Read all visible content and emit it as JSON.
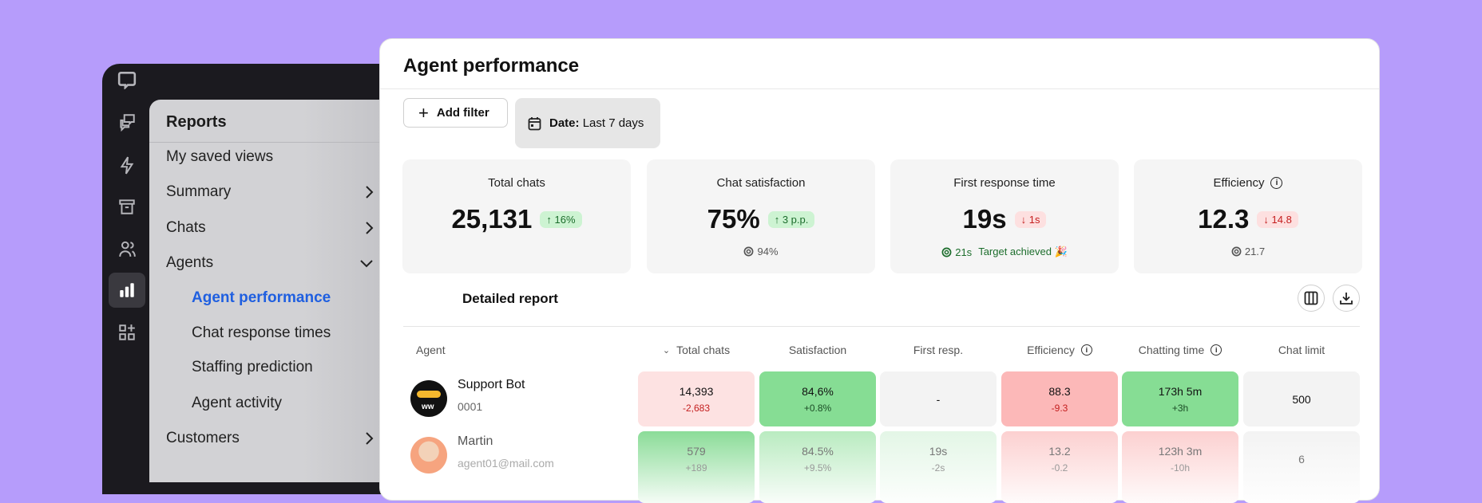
{
  "sidebar": {
    "title": "Reports",
    "items": [
      {
        "label": "My saved views",
        "chevron": ""
      },
      {
        "label": "Summary",
        "chevron": "right"
      },
      {
        "label": "Chats",
        "chevron": "right"
      },
      {
        "label": "Agents",
        "chevron": "down"
      },
      {
        "label": "Agent performance",
        "sub": true,
        "active": true
      },
      {
        "label": "Chat response times",
        "sub": true
      },
      {
        "label": "Staffing prediction",
        "sub": true
      },
      {
        "label": "Agent activity",
        "sub": true
      },
      {
        "label": "Customers",
        "chevron": "right"
      }
    ],
    "rail": [
      "chat-logo-icon",
      "chats-icon",
      "lightning-icon",
      "archive-icon",
      "people-icon",
      "reports-icon",
      "apps-add-icon"
    ]
  },
  "header": {
    "title": "Agent performance",
    "add_filter": "Add filter",
    "date_label": "Date:",
    "date_value": "Last 7 days"
  },
  "cards": [
    {
      "label": "Total chats",
      "value": "25,131",
      "delta": "16%",
      "dir": "up",
      "foot": ""
    },
    {
      "label": "Chat satisfaction",
      "value": "75%",
      "delta": "3 p.p.",
      "dir": "up",
      "foot": "94%"
    },
    {
      "label": "First response time",
      "value": "19s",
      "delta": "1s",
      "dir": "down",
      "foot": "21s",
      "foot_note": "Target achieved 🎉"
    },
    {
      "label": "Efficiency",
      "value": "12.3",
      "delta": "14.8",
      "dir": "down",
      "foot": "21.7",
      "info": true
    }
  ],
  "report": {
    "title": "Detailed report",
    "columns": [
      "Agent",
      "Total chats",
      "Satisfaction",
      "First resp.",
      "Efficiency",
      "Chatting time",
      "Chat limit"
    ],
    "rows": [
      {
        "name": "Support Bot",
        "sub": "0001",
        "cells": [
          [
            "14,393",
            "-2,683"
          ],
          [
            "84,6%",
            "+0.8%"
          ],
          [
            "-",
            ""
          ],
          [
            "88.3",
            "-9.3"
          ],
          [
            "173h 5m",
            "+3h"
          ],
          [
            "500",
            ""
          ]
        ]
      },
      {
        "name": "Martin",
        "sub": "agent01@mail.com",
        "cells": [
          [
            "579",
            "+189"
          ],
          [
            "84.5%",
            "+9.5%"
          ],
          [
            "19s",
            "-2s"
          ],
          [
            "13.2",
            "-0.2"
          ],
          [
            "123h 3m",
            "-10h"
          ],
          [
            "6",
            ""
          ]
        ]
      }
    ]
  },
  "colors": {
    "background": "#b69cfb",
    "accent": "#1f5fe0",
    "good": "#86dd94",
    "bad": "#fcb8b8"
  }
}
